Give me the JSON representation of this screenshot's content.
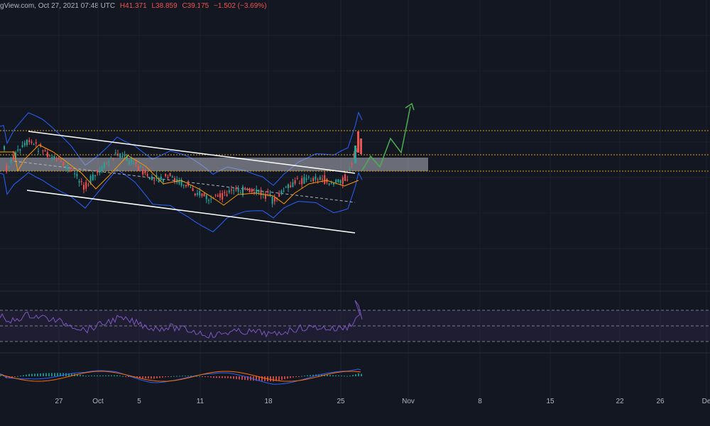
{
  "header": {
    "source": "gView.com, Oct 27, 2021 07:48 UTC",
    "high": "H41.371",
    "low": "L38.859",
    "close": "C39.175",
    "change": "−1.502 (−3.69%)"
  },
  "colors": {
    "background": "#131722",
    "grid": "#1e222d",
    "candle_up": "#26a69a",
    "candle_down": "#ef5350",
    "bollinger": "#2962ff",
    "moving_average": "#ff9800",
    "channel": "#ffffff",
    "resistance_zone": "#b2b5be",
    "level_dotted": "#d4a017",
    "projection": "#4caf50",
    "rsi": "#7e57c2",
    "macd": "#2962ff",
    "signal": "#ff6d00"
  },
  "chart_data": {
    "type": "candlestick",
    "x_tick_labels": [
      "27",
      "Oct",
      "5",
      "11",
      "18",
      "25",
      "Nov",
      "8",
      "15",
      "22",
      "26",
      "De"
    ],
    "panels": [
      "price",
      "rsi",
      "macd"
    ],
    "annotations": [
      "descending channel (upper and lower trendlines)",
      "horizontal resistance zone",
      "dotted horizontal levels",
      "projected upward zig-zag path with arrow"
    ],
    "last_candle": {
      "date": "Oct 27, 2021",
      "high": 41.371,
      "low": 38.859,
      "close": 39.175,
      "change": -1.502,
      "change_pct": -3.69
    },
    "grid": true
  }
}
